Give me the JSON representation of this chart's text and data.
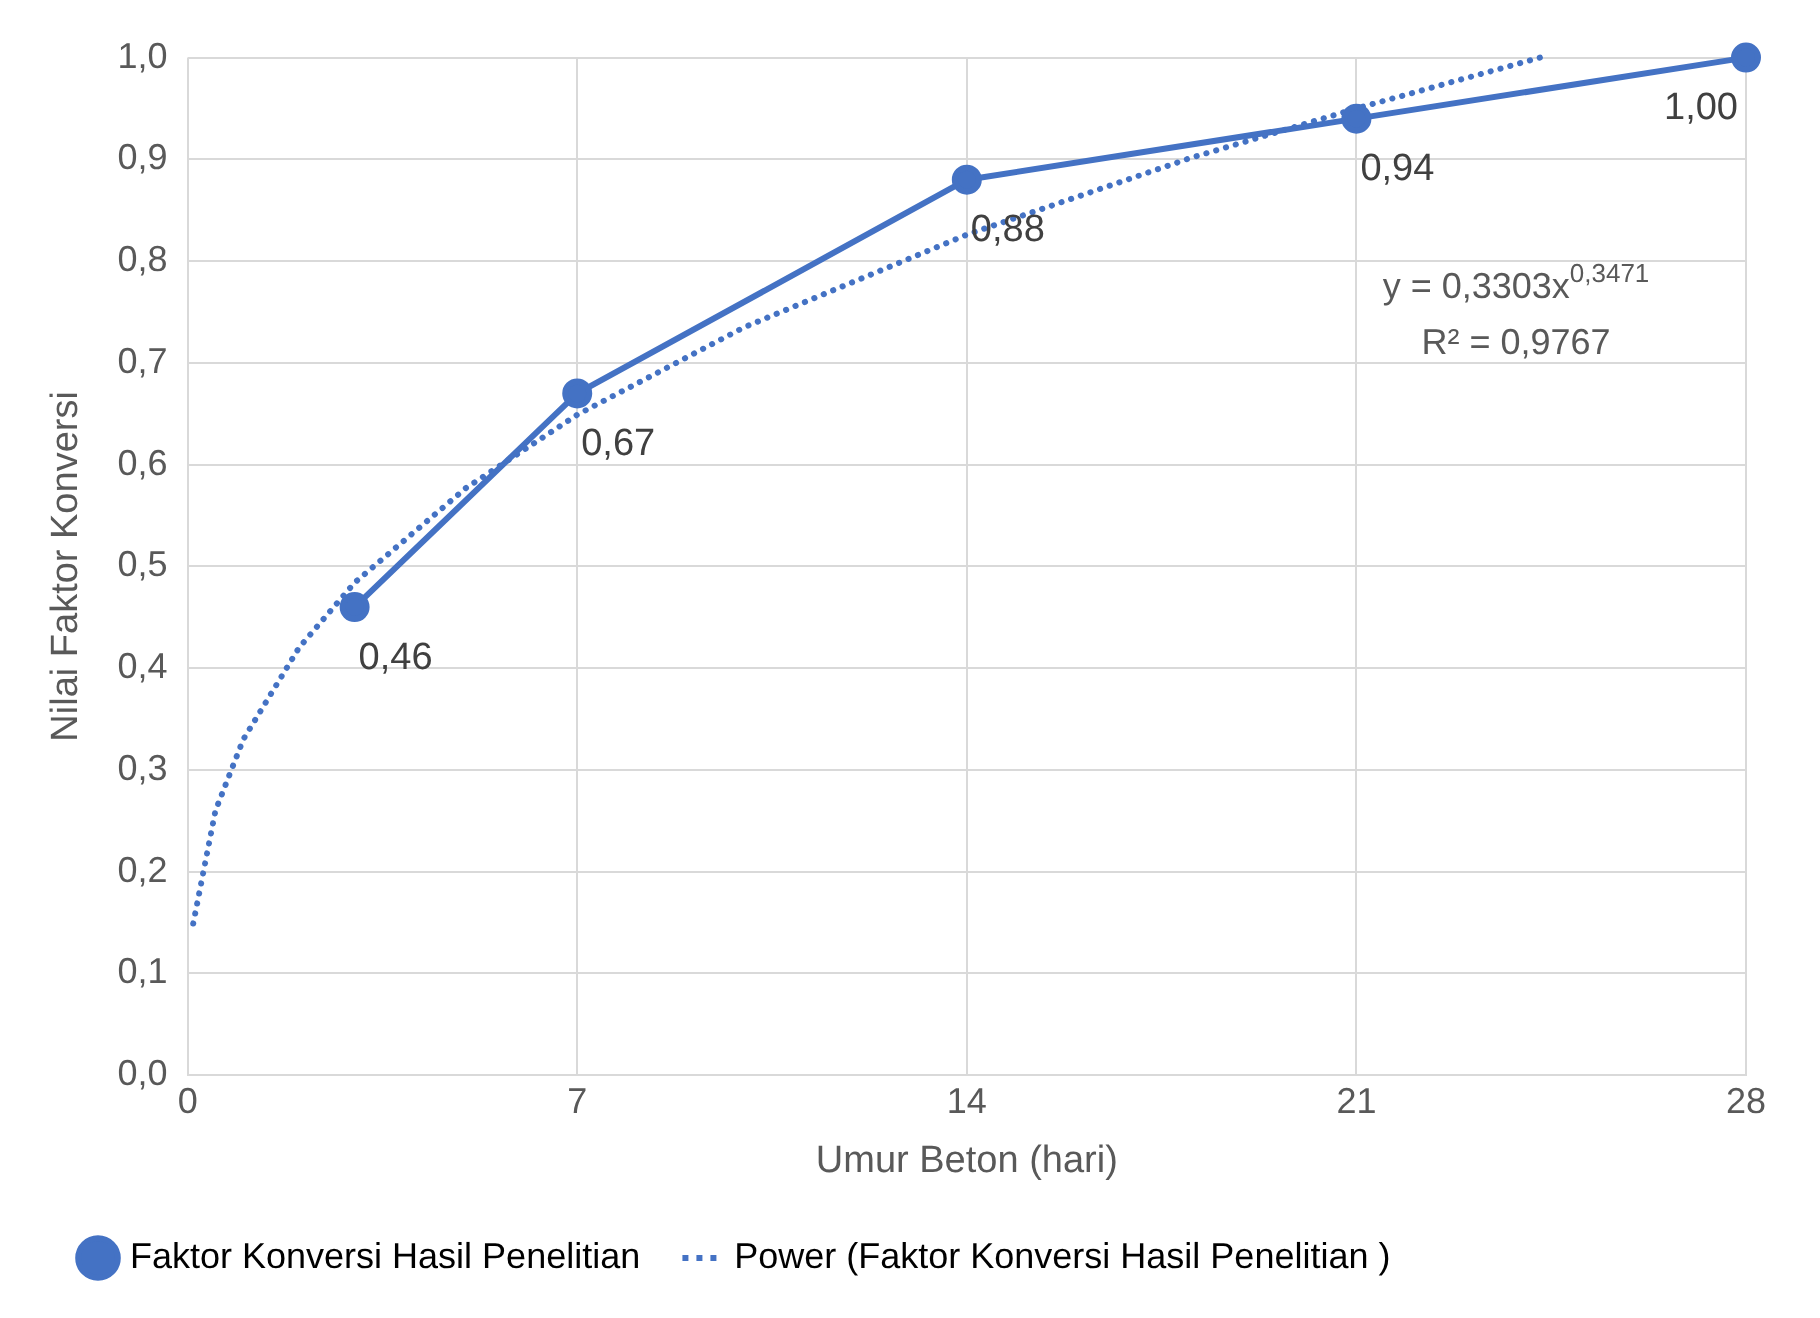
{
  "chart_data": {
    "type": "line",
    "xlabel": "Umur Beton (hari)",
    "ylabel": "Nilai Faktor Konversi",
    "xlim": [
      0,
      28
    ],
    "xticks": [
      0,
      7,
      14,
      21,
      28
    ],
    "ylim": [
      0,
      1
    ],
    "yticks": [
      {
        "value": 0,
        "label": "0,0"
      },
      {
        "value": 0.1,
        "label": "0,1"
      },
      {
        "value": 0.2,
        "label": "0,2"
      },
      {
        "value": 0.3,
        "label": "0,3"
      },
      {
        "value": 0.4,
        "label": "0,4"
      },
      {
        "value": 0.5,
        "label": "0,5"
      },
      {
        "value": 0.6,
        "label": "0,6"
      },
      {
        "value": 0.7,
        "label": "0,7"
      },
      {
        "value": 0.8,
        "label": "0,8"
      },
      {
        "value": 0.9,
        "label": "0,9"
      },
      {
        "value": 1,
        "label": "1,0"
      }
    ],
    "grid": true,
    "legend": "bottom",
    "series": [
      {
        "name": "Faktor Konversi Hasil Penelitian",
        "color": "#4472c4",
        "marker": "circle",
        "line_style": "solid",
        "x": [
          3,
          7,
          14,
          21,
          28
        ],
        "values": [
          0.46,
          0.67,
          0.88,
          0.94,
          1.0
        ],
        "value_labels": [
          "0,46",
          "0,67",
          "0,88",
          "0,94",
          "1,00"
        ]
      },
      {
        "name": "Power (Faktor Konversi Hasil Penelitian )",
        "color": "#4472c4",
        "marker": "none",
        "line_style": "dotted",
        "x": [
          0.1,
          0.5,
          1,
          2,
          3,
          5,
          7,
          10,
          14,
          18,
          21,
          24.3
        ],
        "values": [
          0.149,
          0.26,
          0.33,
          0.42,
          0.484,
          0.577,
          0.649,
          0.735,
          0.826,
          0.901,
          0.95,
          1.0
        ]
      }
    ],
    "annotations": [
      "y = 0,3303x$^{0,3471}$",
      "R² = 0,9767"
    ]
  }
}
